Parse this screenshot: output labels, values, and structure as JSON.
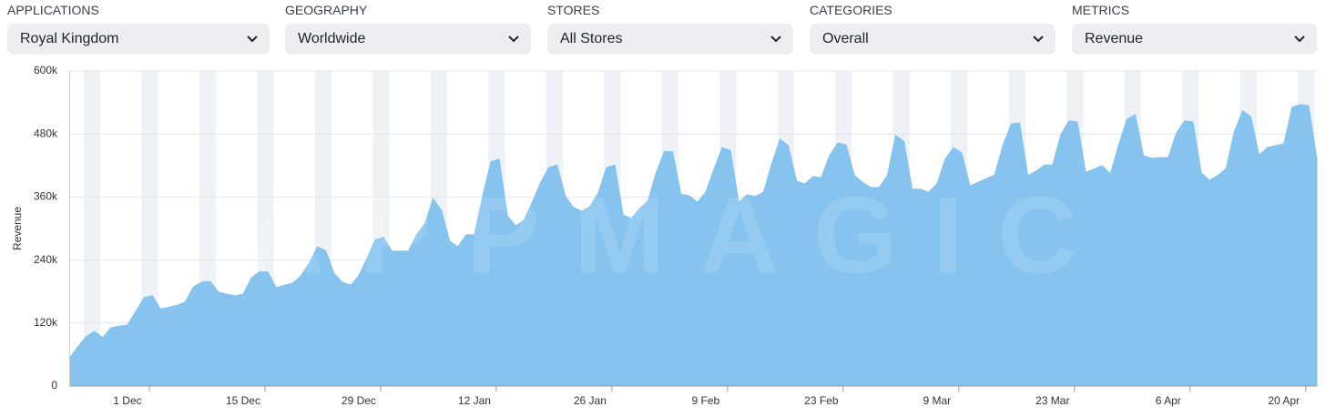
{
  "filters": [
    {
      "label": "APPLICATIONS",
      "value": "Royal Kingdom"
    },
    {
      "label": "GEOGRAPHY",
      "value": "Worldwide"
    },
    {
      "label": "STORES",
      "value": "All Stores"
    },
    {
      "label": "CATEGORIES",
      "value": "Overall"
    },
    {
      "label": "METRICS",
      "value": "Revenue"
    }
  ],
  "watermark": "APPMAGIC",
  "chart_data": {
    "type": "area",
    "y_label": "Revenue",
    "color": "#80c1ee",
    "categories": [
      null,
      null,
      null,
      null,
      null,
      null,
      null,
      "1 Dec",
      null,
      null,
      null,
      null,
      null,
      null,
      null,
      null,
      null,
      null,
      null,
      null,
      null,
      "15 Dec",
      null,
      null,
      null,
      null,
      null,
      null,
      null,
      null,
      null,
      null,
      null,
      null,
      null,
      "29 Dec",
      null,
      null,
      null,
      null,
      null,
      null,
      null,
      null,
      null,
      null,
      null,
      null,
      null,
      "12 Jan",
      null,
      null,
      null,
      null,
      null,
      null,
      null,
      null,
      null,
      null,
      null,
      null,
      null,
      "26 Jan",
      null,
      null,
      null,
      null,
      null,
      null,
      null,
      null,
      null,
      null,
      null,
      null,
      null,
      "9 Feb",
      null,
      null,
      null,
      null,
      null,
      null,
      null,
      null,
      null,
      null,
      null,
      null,
      null,
      "23 Feb",
      null,
      null,
      null,
      null,
      null,
      null,
      null,
      null,
      null,
      null,
      null,
      null,
      null,
      "9 Mar",
      null,
      null,
      null,
      null,
      null,
      null,
      null,
      null,
      null,
      null,
      null,
      null,
      null,
      "23 Mar",
      null,
      null,
      null,
      null,
      null,
      null,
      null,
      null,
      null,
      null,
      null,
      null,
      null,
      "6 Apr",
      null,
      null,
      null,
      null,
      null,
      null,
      null,
      null,
      null,
      null,
      null,
      null,
      null,
      "20 Apr",
      null,
      null,
      null,
      null
    ],
    "values": [
      54000,
      75000,
      94000,
      104000,
      92000,
      111000,
      114000,
      116000,
      142000,
      168000,
      172000,
      147000,
      150000,
      154000,
      160000,
      189000,
      198000,
      199000,
      179000,
      175000,
      172000,
      175000,
      206000,
      218000,
      217000,
      187000,
      192000,
      196000,
      210000,
      234000,
      265000,
      258000,
      215000,
      198000,
      192000,
      210000,
      243000,
      279000,
      283000,
      257000,
      257000,
      257000,
      288000,
      309000,
      357000,
      335000,
      276000,
      265000,
      288000,
      288000,
      362000,
      427000,
      432000,
      324000,
      305000,
      316000,
      350000,
      387000,
      416000,
      421000,
      362000,
      340000,
      333000,
      342000,
      368000,
      416000,
      421000,
      326000,
      319000,
      338000,
      352000,
      406000,
      447000,
      446000,
      366000,
      362000,
      350000,
      369000,
      413000,
      454000,
      449000,
      350000,
      364000,
      361000,
      369000,
      423000,
      470000,
      458000,
      390000,
      385000,
      399000,
      397000,
      439000,
      463000,
      459000,
      401000,
      388000,
      378000,
      378000,
      401000,
      477000,
      466000,
      375000,
      375000,
      369000,
      385000,
      432000,
      454000,
      444000,
      381000,
      388000,
      395000,
      402000,
      459000,
      499000,
      501000,
      401000,
      409000,
      421000,
      421000,
      479000,
      505000,
      503000,
      407000,
      413000,
      420000,
      404000,
      459000,
      508000,
      517000,
      439000,
      434000,
      435000,
      435000,
      482000,
      505000,
      503000,
      406000,
      392000,
      401000,
      414000,
      484000,
      524000,
      513000,
      440000,
      454000,
      458000,
      461000,
      531000,
      536000,
      534000,
      432000
    ],
    "ylim": [
      0,
      600000
    ],
    "yticks": [
      0,
      {
        "value": 120000,
        "label": "120k"
      },
      {
        "value": 240000,
        "label": "240k"
      },
      {
        "value": 360000,
        "label": "360k"
      },
      {
        "value": 480000,
        "label": "480k"
      },
      {
        "value": 600000,
        "label": "600k"
      }
    ],
    "grid": true
  }
}
